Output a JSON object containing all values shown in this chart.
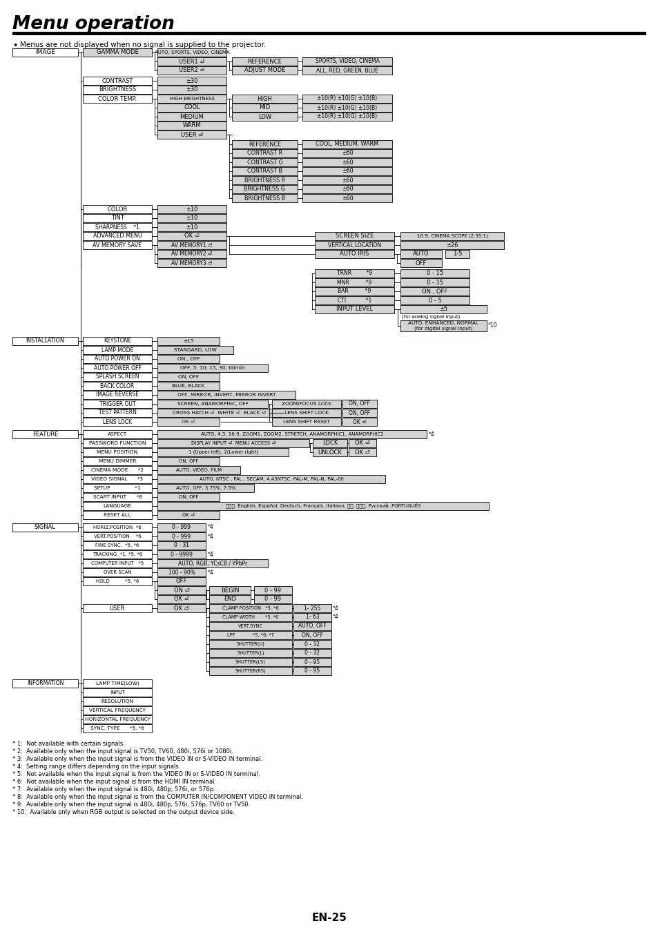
{
  "title": "Menu operation",
  "subtitle": "Menus are not displayed when no signal is supplied to the projector.",
  "page_number": "EN-25",
  "bg": "#ffffff",
  "gray": "#d4d4d4",
  "white": "#ffffff",
  "black": "#000000",
  "footnotes": [
    "* 1:  Not available with certain signals.",
    "* 2:  Available only when the input signal is TV50, TV60, 480i, 576i or 1080i.",
    "* 3:  Available only when the input signal is from the VIDEO IN or S-VIDEO IN terminal.",
    "* 4:  Setting range differs depending on the input signals.",
    "* 5:  Not available when the input signal is from the VIDEO IN or S-VIDEO IN terminal.",
    "* 6:  Not available when the input signal is from the HDMI IN terminal.",
    "* 7:  Available only when the input signal is 480i, 480p, 576i, or 576p.",
    "* 8:  Available only when the input signal is from the COMPUTER IN/COMPONENT VIDEO IN terminal.",
    "* 9:  Available only when the input signal is 480i, 480p, 576i, 576p, TV60 or TV50.",
    "* 10:  Available only when RGB output is selected on the output device side."
  ]
}
